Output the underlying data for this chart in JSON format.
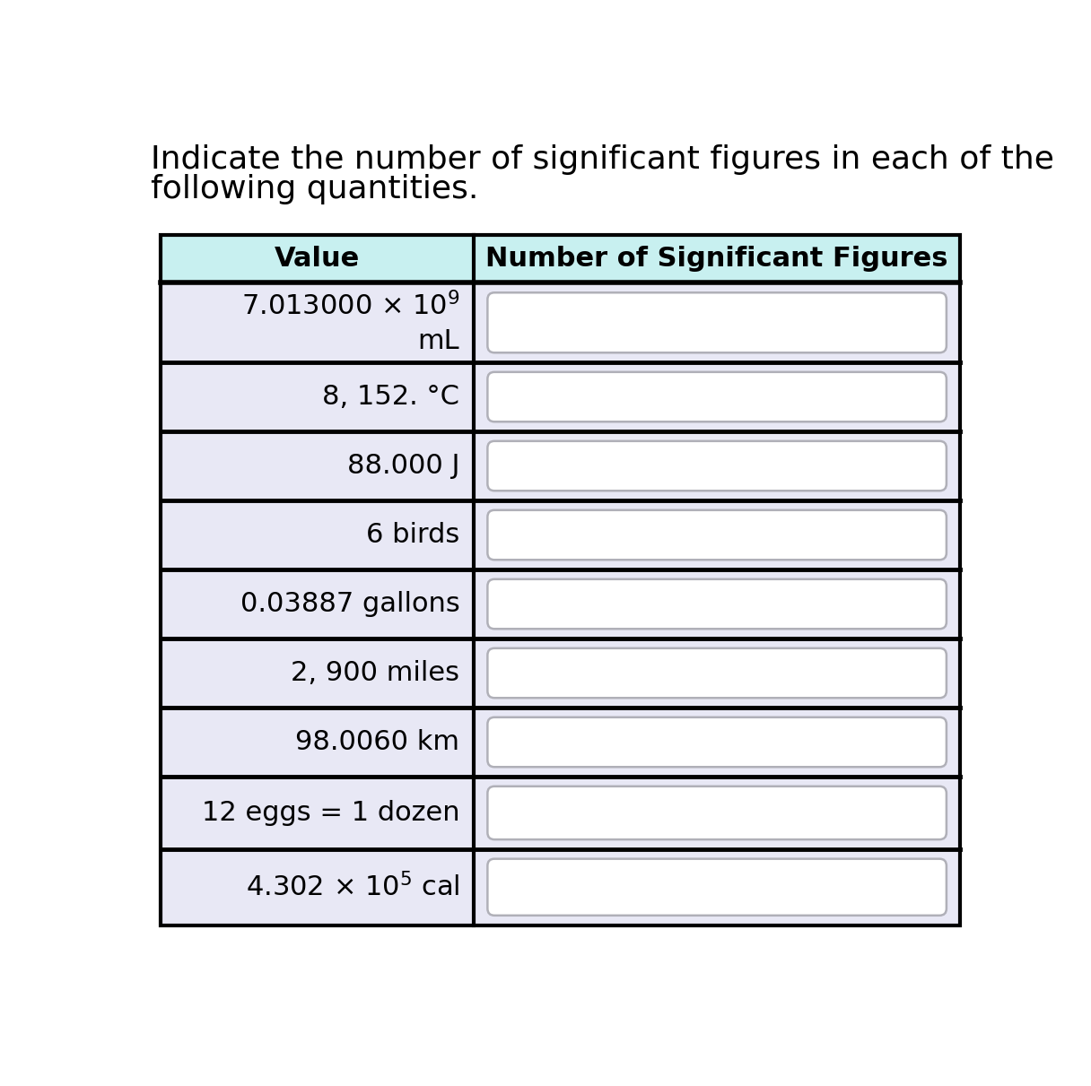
{
  "title_line1": "Indicate the number of significant figures in each of the",
  "title_line2": "following quantities.",
  "title_fontsize": 26,
  "col1_header": "Value",
  "col2_header": "Number of Significant Figures",
  "header_fontsize": 22,
  "row_fontsize": 22,
  "rows": [
    "7.013000 × 10$^{9}$\nmL",
    "8, 152. °C",
    "88.000 J",
    "6 birds",
    "0.03887 gallons",
    "2, 900 miles",
    "98.0060 km",
    "12 eggs = 1 dozen",
    "4.302 × 10$^{5}$ cal"
  ],
  "bg_color": "#ffffff",
  "header_bg": "#c8f0f0",
  "row_bg": "#e8e8f5",
  "box_color": "#b0b0b8",
  "border_color": "#000000",
  "thick_border": 3.0
}
